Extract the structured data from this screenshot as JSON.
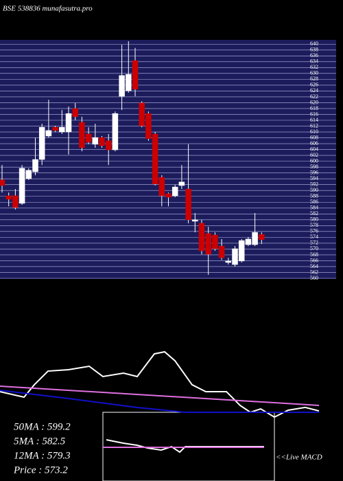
{
  "chart_data": [
    {
      "type": "candlestick",
      "title": "BSE 538836  munafasutra.pro",
      "open": [
        593.6,
        588.2,
        588.2,
        585.6,
        594.0,
        596.4,
        600.6,
        608.6,
        611.6,
        610.0,
        610.0,
        618.0,
        613.3,
        609.3,
        605.8,
        608.1,
        607.0,
        603.9,
        622.2,
        624.1,
        634.4,
        619.9,
        616.3,
        609.3,
        594.5,
        588.9,
        588.2,
        591.7,
        590.5,
        579.5,
        578.8,
        575.3,
        574.8,
        571.0,
        565.4,
        564.7,
        565.9,
        571.5,
        571.5,
        575.0
      ],
      "high": [
        598.7,
        589.3,
        590.5,
        598.7,
        597.6,
        608.1,
        612.8,
        621.0,
        612.1,
        617.5,
        618.7,
        619.9,
        615.2,
        611.6,
        612.8,
        608.6,
        609.3,
        617.0,
        639.8,
        641.0,
        638.7,
        620.5,
        617.0,
        610.0,
        595.2,
        589.3,
        592.0,
        598.7,
        605.8,
        582.3,
        580.0,
        577.6,
        575.7,
        573.4,
        567.0,
        571.0,
        573.4,
        574.1,
        582.3,
        575.7
      ],
      "low": [
        589.3,
        584.6,
        583.5,
        585.1,
        593.6,
        595.2,
        598.7,
        608.1,
        610.0,
        609.3,
        602.3,
        614.0,
        603.4,
        605.8,
        604.6,
        604.6,
        598.7,
        603.4,
        617.5,
        623.4,
        622.2,
        611.6,
        607.0,
        591.7,
        584.6,
        584.6,
        587.7,
        590.5,
        578.8,
        575.7,
        568.2,
        561.2,
        569.4,
        566.3,
        564.7,
        564.0,
        565.4,
        571.0,
        571.0,
        571.7
      ],
      "close": [
        591.7,
        587.0,
        584.2,
        597.6,
        596.9,
        600.6,
        611.6,
        610.5,
        610.5,
        611.6,
        616.3,
        615.2,
        604.6,
        606.5,
        608.1,
        605.3,
        603.9,
        616.3,
        629.3,
        629.7,
        624.6,
        612.1,
        607.7,
        592.2,
        588.2,
        587.7,
        591.2,
        592.9,
        580.0,
        580.0,
        569.4,
        568.2,
        570.1,
        567.0,
        565.9,
        570.1,
        572.9,
        573.4,
        575.7,
        573.2
      ],
      "up_color": "#ffffff",
      "down_color": "#cc0000",
      "ylim": [
        560,
        641
      ],
      "yticks": [
        560,
        562,
        564,
        566,
        568,
        570,
        572,
        574,
        576,
        578,
        580,
        582,
        584,
        586,
        588,
        590,
        592,
        594,
        596,
        598,
        600,
        602,
        604,
        606,
        608,
        610,
        612,
        614,
        616,
        618,
        620,
        622,
        624,
        626,
        628,
        630,
        632,
        634,
        636,
        638,
        640
      ],
      "grid": true
    },
    {
      "type": "line",
      "xlim": [
        0,
        500
      ],
      "ylim": [
        0,
        100
      ],
      "series": [
        {
          "color": "#ffffff",
          "x": [
            0,
            35,
            50,
            70,
            100,
            130,
            150,
            180,
            200,
            225,
            240,
            255,
            280,
            300,
            330,
            350,
            365,
            380,
            400,
            420,
            445,
            465
          ],
          "values": [
            36.4,
            29.1,
            45.5,
            63.6,
            65.5,
            70,
            56.4,
            60.9,
            56.4,
            86.4,
            89.1,
            77.3,
            45.5,
            36.4,
            36.4,
            18.2,
            9.1,
            13.6,
            2.7,
            11.8,
            15.5,
            10.9
          ]
        },
        {
          "color": "#e070e0",
          "x": [
            0,
            465
          ],
          "values": [
            43.6,
            18.2
          ]
        },
        {
          "color": "#1010cc",
          "x": [
            0,
            100,
            200,
            270,
            465
          ],
          "values": [
            38.2,
            27.3,
            15.5,
            9.1,
            9.1
          ]
        }
      ]
    },
    {
      "type": "line",
      "title": "<<Live MACD",
      "xlim": [
        150,
        400
      ],
      "ylim": [
        0,
        100
      ],
      "series": [
        {
          "color": "#ffffff",
          "x": [
            155,
            180,
            200,
            215,
            235,
            250,
            262,
            270,
            385
          ],
          "values": [
            60,
            55,
            52,
            48,
            45,
            50,
            42,
            50,
            50
          ]
        },
        {
          "color": "#e070e0",
          "x": [
            150,
            385
          ],
          "values": [
            49,
            49
          ]
        }
      ]
    }
  ],
  "stats": [
    "50MA : 599.2",
    "5MA : 582.5",
    "12MA : 579.3",
    "Price   : 573.2"
  ]
}
